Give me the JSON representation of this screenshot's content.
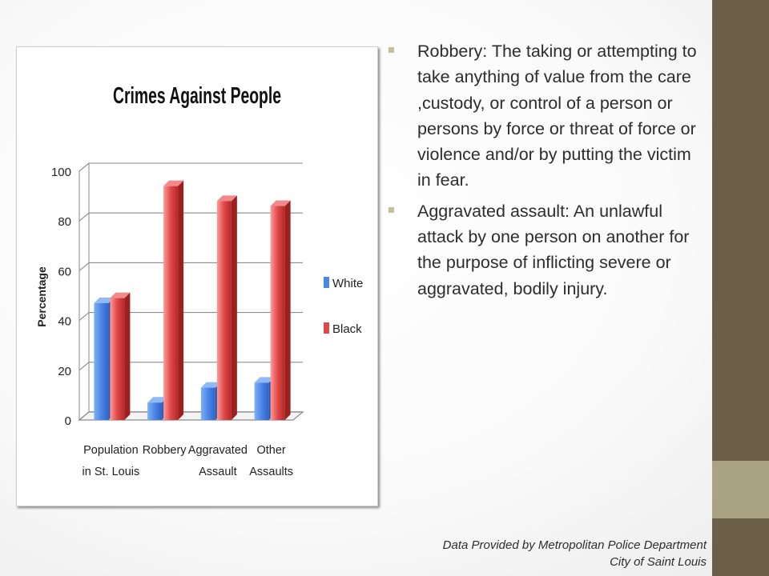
{
  "slide": {
    "bullets": [
      {
        "text": "Robbery: The taking or attempting to take anything of value from the care ,custody, or control of a person or persons by force or threat of force or violence and/or by putting the victim in fear."
      },
      {
        "text": "Aggravated assault: An unlawful attack by one person on another for the purpose of inflicting severe or aggravated, bodily injury."
      }
    ],
    "credit_line1": "Data Provided by Metropolitan Police Department",
    "credit_line2": "City of Saint Louis"
  },
  "theme": {
    "accent_dark": "#6b5f48",
    "accent_light": "#a9a383",
    "bullet": "#c4c09a"
  },
  "chart_data": {
    "type": "bar",
    "title": "Crimes Against People",
    "ylabel": "Percentage",
    "xlabel": "",
    "categories": [
      [
        "Population",
        "in St. Louis"
      ],
      [
        "Robbery"
      ],
      [
        "Aggravated",
        "Assault"
      ],
      [
        "Other",
        "Assaults"
      ]
    ],
    "series": [
      {
        "name": "White",
        "color": "#4a86e8",
        "values": [
          47,
          7,
          13,
          15
        ]
      },
      {
        "name": "Black",
        "color": "#e04848",
        "values": [
          49,
          94,
          88,
          86
        ]
      }
    ],
    "ylim": [
      0,
      100
    ],
    "yticks": [
      0,
      20,
      40,
      60,
      80,
      100
    ],
    "grid": true,
    "legend": "right"
  }
}
